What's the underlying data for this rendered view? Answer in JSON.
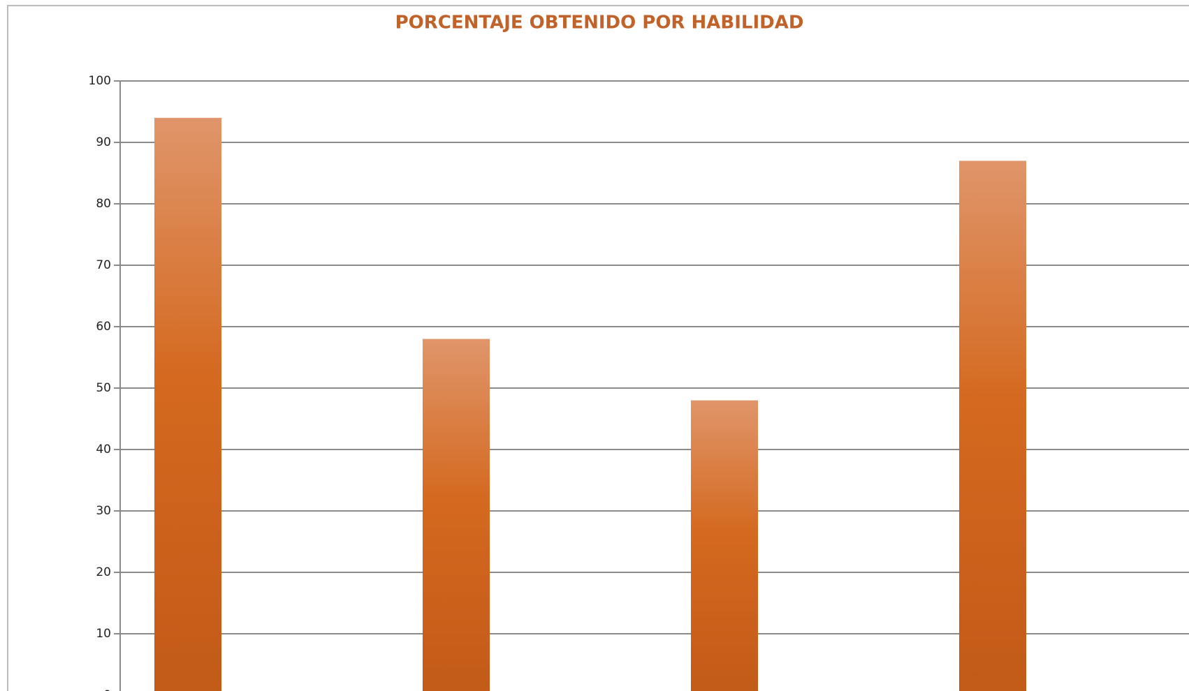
{
  "chart_data": {
    "type": "bar",
    "title": "PORCENTAJE OBTENIDO POR HABILIDAD",
    "categories": [
      null,
      null,
      null,
      null
    ],
    "values": [
      94,
      58,
      48,
      87
    ],
    "color": "#d2691f",
    "ylim": [
      0,
      100
    ],
    "yticks": [
      0,
      10,
      20,
      30,
      40,
      50,
      60,
      70,
      80,
      90,
      100
    ],
    "grid": true
  }
}
